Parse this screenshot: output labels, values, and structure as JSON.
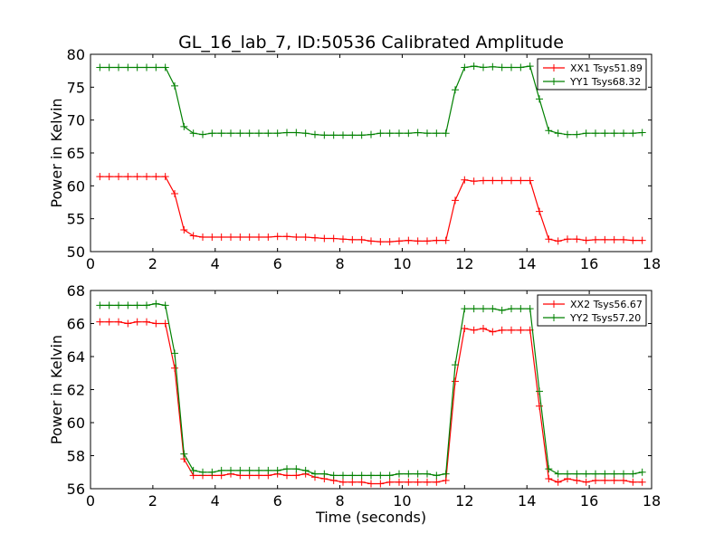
{
  "title": "GL_16_lab_7, ID:50536 Calibrated Amplitude",
  "colors": {
    "xx": "#ff0000",
    "yy": "#008000",
    "frame": "#000000",
    "background": "#ffffff"
  },
  "chart_data": [
    {
      "type": "line",
      "xlabel": "",
      "ylabel": "Power in Kelvin",
      "xlim": [
        0,
        18
      ],
      "ylim": [
        50,
        80
      ],
      "xticks": [
        0,
        2,
        4,
        6,
        8,
        10,
        12,
        14,
        16,
        18
      ],
      "yticks": [
        50,
        55,
        60,
        65,
        70,
        75,
        80
      ],
      "legend_position": "top-right",
      "grid": false,
      "x": [
        0.3,
        0.6,
        0.9,
        1.2,
        1.5,
        1.8,
        2.1,
        2.4,
        2.7,
        3.0,
        3.3,
        3.6,
        3.9,
        4.2,
        4.5,
        4.8,
        5.1,
        5.4,
        5.7,
        6.0,
        6.3,
        6.6,
        6.9,
        7.2,
        7.5,
        7.8,
        8.1,
        8.4,
        8.7,
        9.0,
        9.3,
        9.6,
        9.9,
        10.2,
        10.5,
        10.8,
        11.1,
        11.4,
        11.7,
        12.0,
        12.3,
        12.6,
        12.9,
        13.2,
        13.5,
        13.8,
        14.1,
        14.4,
        14.7,
        15.0,
        15.3,
        15.6,
        15.9,
        16.2,
        16.5,
        16.8,
        17.1,
        17.4,
        17.7
      ],
      "series": [
        {
          "name": "XX1 Tsys51.89",
          "color": "#ff0000",
          "values": [
            61.4,
            61.4,
            61.4,
            61.4,
            61.4,
            61.4,
            61.4,
            61.4,
            58.8,
            53.3,
            52.4,
            52.2,
            52.2,
            52.2,
            52.2,
            52.2,
            52.2,
            52.2,
            52.2,
            52.3,
            52.3,
            52.2,
            52.2,
            52.1,
            52.0,
            52.0,
            51.9,
            51.8,
            51.8,
            51.6,
            51.5,
            51.5,
            51.6,
            51.7,
            51.6,
            51.6,
            51.7,
            51.7,
            57.8,
            60.9,
            60.7,
            60.8,
            60.8,
            60.8,
            60.8,
            60.8,
            60.8,
            56.1,
            51.9,
            51.6,
            51.9,
            51.9,
            51.7,
            51.8,
            51.8,
            51.8,
            51.8,
            51.7,
            51.7
          ]
        },
        {
          "name": "YY1 Tsys68.32",
          "color": "#008000",
          "values": [
            78.0,
            78.0,
            78.0,
            78.0,
            78.0,
            78.0,
            78.0,
            78.0,
            75.2,
            69.0,
            68.0,
            67.8,
            68.0,
            68.0,
            68.0,
            68.0,
            68.0,
            68.0,
            68.0,
            68.0,
            68.1,
            68.1,
            68.0,
            67.8,
            67.7,
            67.7,
            67.7,
            67.7,
            67.7,
            67.8,
            68.0,
            68.0,
            68.0,
            68.0,
            68.1,
            68.0,
            68.0,
            68.0,
            74.6,
            78.0,
            78.2,
            78.0,
            78.1,
            78.0,
            78.0,
            78.0,
            78.2,
            73.2,
            68.4,
            68.0,
            67.8,
            67.8,
            68.0,
            68.0,
            68.0,
            68.0,
            68.0,
            68.0,
            68.1
          ]
        }
      ]
    },
    {
      "type": "line",
      "xlabel": "Time (seconds)",
      "ylabel": "Power in Kelvin",
      "xlim": [
        0,
        18
      ],
      "ylim": [
        56,
        68
      ],
      "xticks": [
        0,
        2,
        4,
        6,
        8,
        10,
        12,
        14,
        16,
        18
      ],
      "yticks": [
        56,
        58,
        60,
        62,
        64,
        66,
        68
      ],
      "legend_position": "top-right",
      "grid": false,
      "x": [
        0.3,
        0.6,
        0.9,
        1.2,
        1.5,
        1.8,
        2.1,
        2.4,
        2.7,
        3.0,
        3.3,
        3.6,
        3.9,
        4.2,
        4.5,
        4.8,
        5.1,
        5.4,
        5.7,
        6.0,
        6.3,
        6.6,
        6.9,
        7.2,
        7.5,
        7.8,
        8.1,
        8.4,
        8.7,
        9.0,
        9.3,
        9.6,
        9.9,
        10.2,
        10.5,
        10.8,
        11.1,
        11.4,
        11.7,
        12.0,
        12.3,
        12.6,
        12.9,
        13.2,
        13.5,
        13.8,
        14.1,
        14.4,
        14.7,
        15.0,
        15.3,
        15.6,
        15.9,
        16.2,
        16.5,
        16.8,
        17.1,
        17.4,
        17.7
      ],
      "series": [
        {
          "name": "XX2 Tsys56.67",
          "color": "#ff0000",
          "values": [
            66.1,
            66.1,
            66.1,
            66.0,
            66.1,
            66.1,
            66.0,
            66.0,
            63.3,
            57.8,
            56.8,
            56.8,
            56.8,
            56.8,
            56.9,
            56.8,
            56.8,
            56.8,
            56.8,
            56.9,
            56.8,
            56.8,
            56.9,
            56.7,
            56.6,
            56.5,
            56.4,
            56.4,
            56.4,
            56.3,
            56.3,
            56.4,
            56.4,
            56.4,
            56.4,
            56.4,
            56.4,
            56.5,
            62.5,
            65.7,
            65.6,
            65.7,
            65.5,
            65.6,
            65.6,
            65.6,
            65.6,
            61.0,
            56.6,
            56.4,
            56.6,
            56.5,
            56.4,
            56.5,
            56.5,
            56.5,
            56.5,
            56.4,
            56.4
          ]
        },
        {
          "name": "YY2 Tsys57.20",
          "color": "#008000",
          "values": [
            67.1,
            67.1,
            67.1,
            67.1,
            67.1,
            67.1,
            67.2,
            67.1,
            64.2,
            58.1,
            57.1,
            57.0,
            57.0,
            57.1,
            57.1,
            57.1,
            57.1,
            57.1,
            57.1,
            57.1,
            57.2,
            57.2,
            57.1,
            56.9,
            56.9,
            56.8,
            56.8,
            56.8,
            56.8,
            56.8,
            56.8,
            56.8,
            56.9,
            56.9,
            56.9,
            56.9,
            56.8,
            56.9,
            63.5,
            66.9,
            66.9,
            66.9,
            66.9,
            66.8,
            66.9,
            66.9,
            66.9,
            61.9,
            57.2,
            56.9,
            56.9,
            56.9,
            56.9,
            56.9,
            56.9,
            56.9,
            56.9,
            56.9,
            57.0
          ]
        }
      ]
    }
  ]
}
